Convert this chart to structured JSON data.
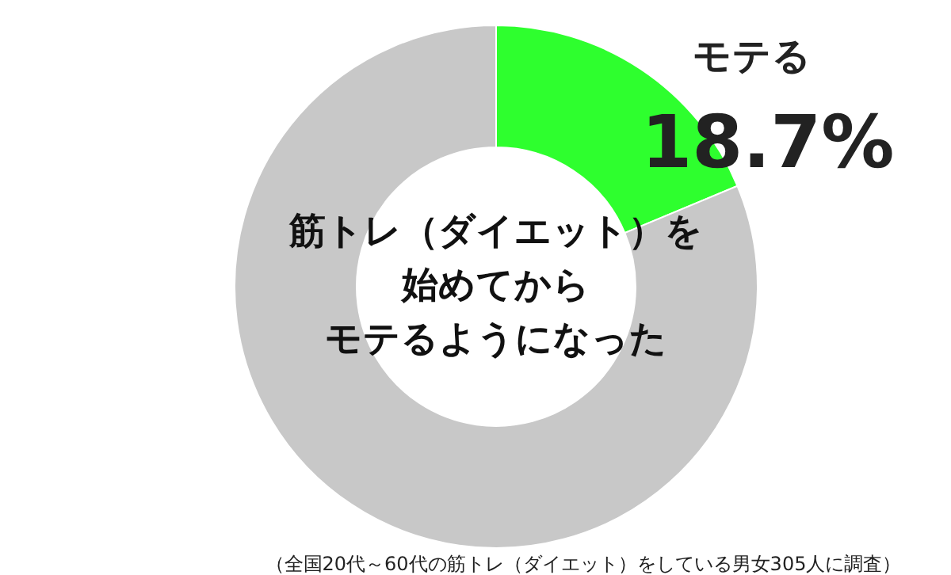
{
  "chart_data": {
    "type": "donut",
    "title": "筋トレ（ダイエット）を始めてからモテるようになった",
    "categories": [
      "モテる",
      null
    ],
    "values": [
      18.7,
      81.3
    ],
    "colors": [
      "#2eff2e",
      "#c8c8c8"
    ],
    "value_labels": [
      "18.7%",
      null
    ],
    "annotations": [
      "（全国20代～60代の筋トレ（ダイエット）をしている男女305人に調査）"
    ]
  }
}
